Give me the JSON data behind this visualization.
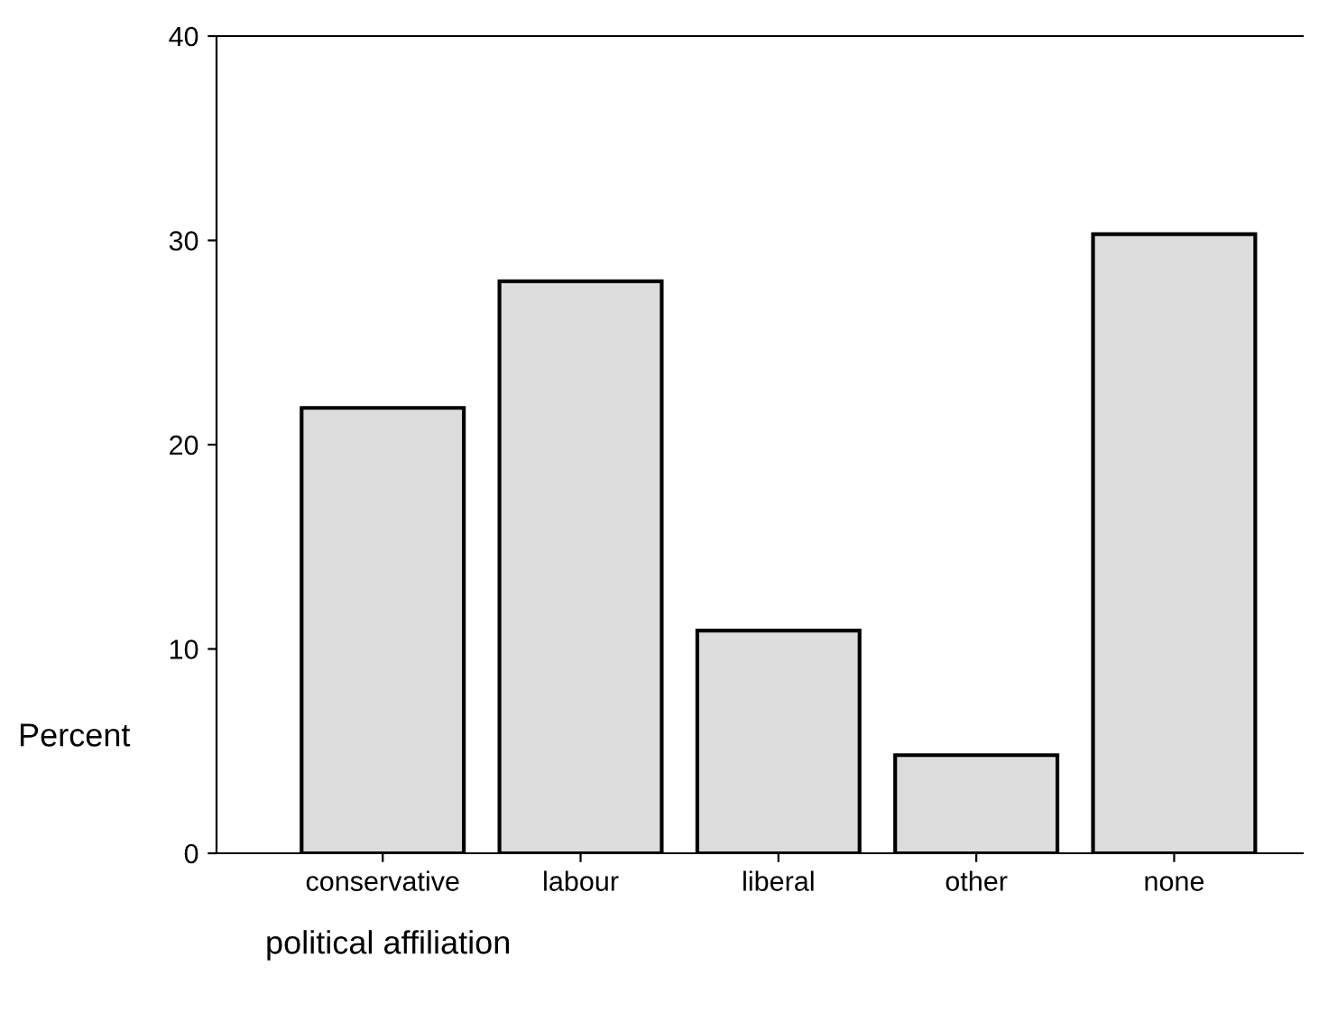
{
  "chart_data": {
    "type": "bar",
    "xlabel": "political affiliation",
    "ylabel": "Percent",
    "categories": [
      "conservative",
      "labour",
      "liberal",
      "other",
      "none"
    ],
    "values": [
      21.8,
      28.0,
      10.9,
      4.8,
      30.3
    ],
    "color": "#dcdcdc",
    "ylim": [
      0,
      40
    ],
    "yticks": [
      0,
      10,
      20,
      30,
      40
    ],
    "grid": false
  }
}
